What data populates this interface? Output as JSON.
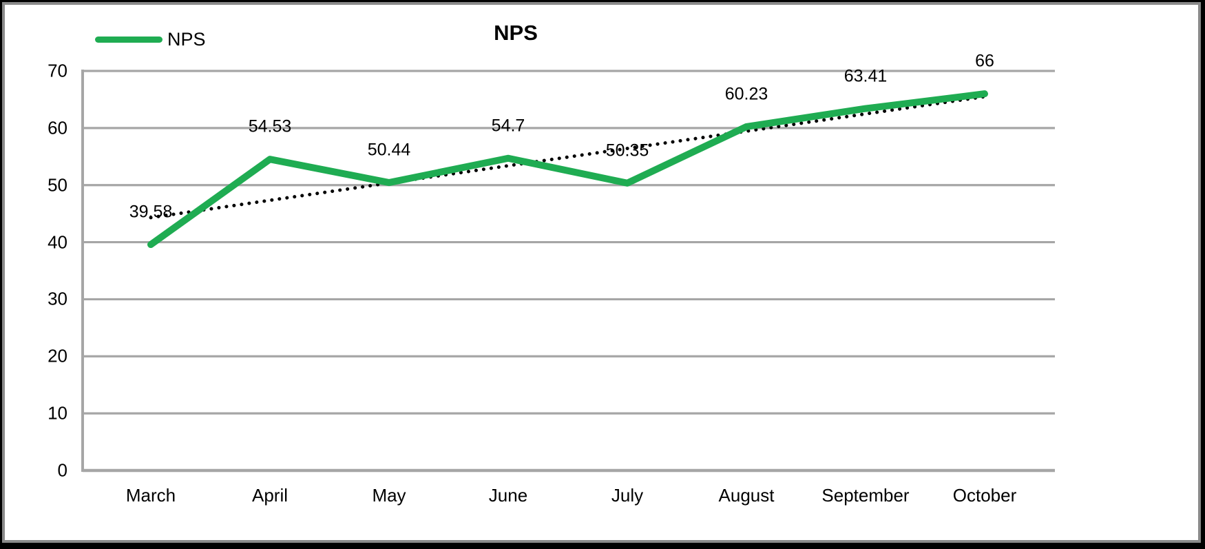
{
  "window": {
    "background_color": "#000000",
    "frame_border_color": "#8a8a8a",
    "plot_background": "#ffffff"
  },
  "chart": {
    "title": "NPS",
    "legend": {
      "label": "NPS",
      "position": "top-left",
      "swatch_color": "#1FAC52"
    }
  },
  "chart_data": {
    "type": "line",
    "title": "NPS",
    "categories": [
      "March",
      "April",
      "May",
      "June",
      "July",
      "August",
      "September",
      "October"
    ],
    "series": [
      {
        "name": "NPS",
        "color": "#1FAC52",
        "line_width": 10,
        "values": [
          39.58,
          54.53,
          50.44,
          54.7,
          50.35,
          60.23,
          63.41,
          66
        ],
        "data_labels": [
          "39.58",
          "54.53",
          "50.44",
          "54.7",
          "50.35",
          "60.23",
          "63.41",
          "66"
        ]
      }
    ],
    "trendline": {
      "for_series": "NPS",
      "style": "dotted",
      "color": "#000000",
      "start_value": 44.31,
      "end_value": 65.5
    },
    "y_axis": {
      "min": 0,
      "max": 70,
      "step": 10,
      "tick_labels": [
        "0",
        "10",
        "20",
        "30",
        "40",
        "50",
        "60",
        "70"
      ]
    },
    "grid": true,
    "gridline_color": "#A6A6A6",
    "axis_line_color": "#A6A6A6",
    "legend_position": "top-left"
  }
}
